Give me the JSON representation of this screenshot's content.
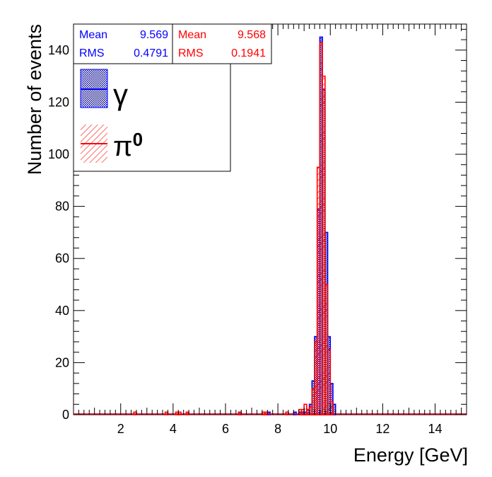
{
  "colors": {
    "gamma": "#0000ff",
    "pi0": "#ff0000",
    "axis": "#000000"
  },
  "stats": {
    "gamma": {
      "mean_label": "Mean",
      "mean": "9.569",
      "rms_label": "RMS",
      "rms": "0.4791"
    },
    "pi0": {
      "mean_label": "Mean",
      "mean": "9.568",
      "rms_label": "RMS",
      "rms": "0.1941"
    }
  },
  "legend": {
    "gamma_label": "γ",
    "pi0_base": "π",
    "pi0_sup": "0"
  },
  "chart_data": {
    "type": "histogram",
    "title": "",
    "xlabel": "Energy [GeV]",
    "ylabel": "Number of events",
    "xlim": [
      0.2,
      15.2
    ],
    "ylim": [
      0,
      150
    ],
    "xticks": [
      2,
      4,
      6,
      8,
      10,
      12,
      14
    ],
    "yticks": [
      0,
      20,
      40,
      60,
      80,
      100,
      120,
      140
    ],
    "bin_width": 0.1,
    "series": [
      {
        "name": "γ",
        "color": "#0000ff",
        "fill": "hatched-cross",
        "mean": 9.569,
        "rms": 0.4791,
        "bins": [
          [
            6.5,
            1
          ],
          [
            7.6,
            1
          ],
          [
            8.6,
            1
          ],
          [
            8.8,
            1
          ],
          [
            8.9,
            1
          ],
          [
            9.0,
            1
          ],
          [
            9.1,
            2
          ],
          [
            9.2,
            4
          ],
          [
            9.3,
            13
          ],
          [
            9.4,
            30
          ],
          [
            9.5,
            79
          ],
          [
            9.6,
            145
          ],
          [
            9.7,
            125
          ],
          [
            9.8,
            70
          ],
          [
            9.9,
            30
          ],
          [
            10.0,
            12
          ],
          [
            10.1,
            4
          ]
        ]
      },
      {
        "name": "π0",
        "color": "#ff0000",
        "fill": "hatched-diagonal",
        "mean": 9.568,
        "rms": 0.1941,
        "bins": [
          [
            2.5,
            1
          ],
          [
            3.7,
            1
          ],
          [
            4.1,
            1
          ],
          [
            4.2,
            1
          ],
          [
            4.5,
            1
          ],
          [
            6.5,
            1
          ],
          [
            7.4,
            1
          ],
          [
            7.5,
            1
          ],
          [
            8.3,
            1
          ],
          [
            8.8,
            2
          ],
          [
            8.9,
            2
          ],
          [
            9.0,
            4
          ],
          [
            9.1,
            2
          ],
          [
            9.2,
            3
          ],
          [
            9.3,
            10
          ],
          [
            9.4,
            28
          ],
          [
            9.5,
            95
          ],
          [
            9.6,
            143
          ],
          [
            9.7,
            130
          ],
          [
            9.8,
            50
          ],
          [
            9.9,
            25
          ],
          [
            10.0,
            5
          ]
        ]
      }
    ]
  }
}
